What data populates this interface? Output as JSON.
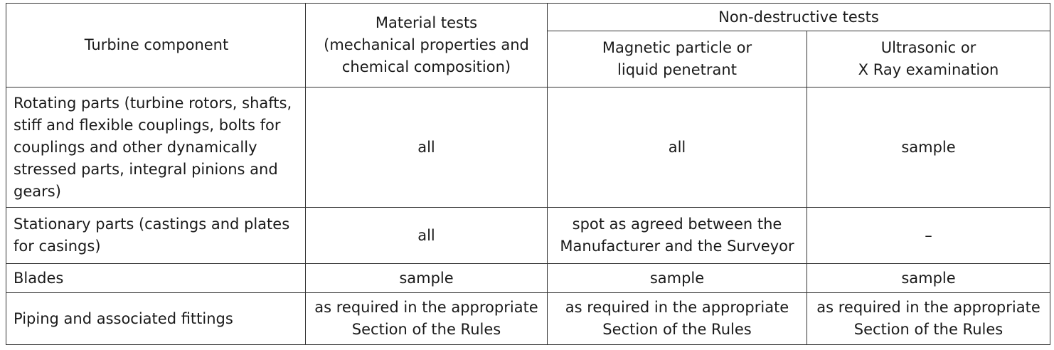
{
  "header": {
    "component": "Turbine component",
    "material_tests": "Material tests\n(mechanical properties and\nchemical composition)",
    "ndt_group": "Non-destructive tests",
    "magnetic": "Magnetic particle or\nliquid penetrant",
    "ultrasonic": "Ultrasonic or\nX Ray examination"
  },
  "rows": [
    {
      "component": "Rotating parts (turbine rotors, shafts, stiff and flexible couplings, bolts for couplings and other dynamically stressed parts, integral pinions and gears)",
      "material": "all",
      "magnetic": "all",
      "ultrasonic": "sample"
    },
    {
      "component": "Stationary parts (castings and plates for casings)",
      "material": "all",
      "magnetic": "spot as agreed between the\nManufacturer and the Surveyor",
      "ultrasonic": "–"
    },
    {
      "component": "Blades",
      "material": "sample",
      "magnetic": "sample",
      "ultrasonic": "sample"
    },
    {
      "component": "Piping and associated fittings",
      "material": "as required in the appropriate\nSection of the Rules",
      "magnetic": "as required in the appropriate\nSection of the Rules",
      "ultrasonic": "as required in the appropriate\nSection of the Rules"
    }
  ]
}
